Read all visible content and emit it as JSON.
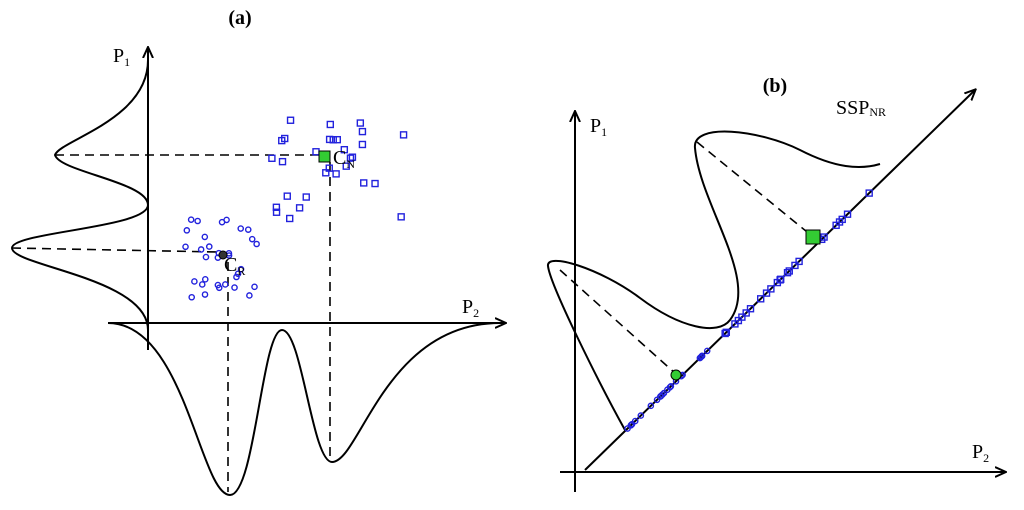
{
  "panels": [
    {
      "label": "(a)",
      "axis_y": {
        "main": "P",
        "sub": "1"
      },
      "axis_x": {
        "main": "P",
        "sub": "2"
      },
      "centers": [
        {
          "main": "C",
          "sub": "N"
        },
        {
          "main": "C",
          "sub": "R"
        }
      ]
    },
    {
      "label": "(b)",
      "axis_y": {
        "main": "P",
        "sub": "1"
      },
      "axis_x": {
        "main": "P",
        "sub": "2"
      },
      "line_label": {
        "main": "SSP",
        "sub": "NR"
      }
    }
  ]
}
